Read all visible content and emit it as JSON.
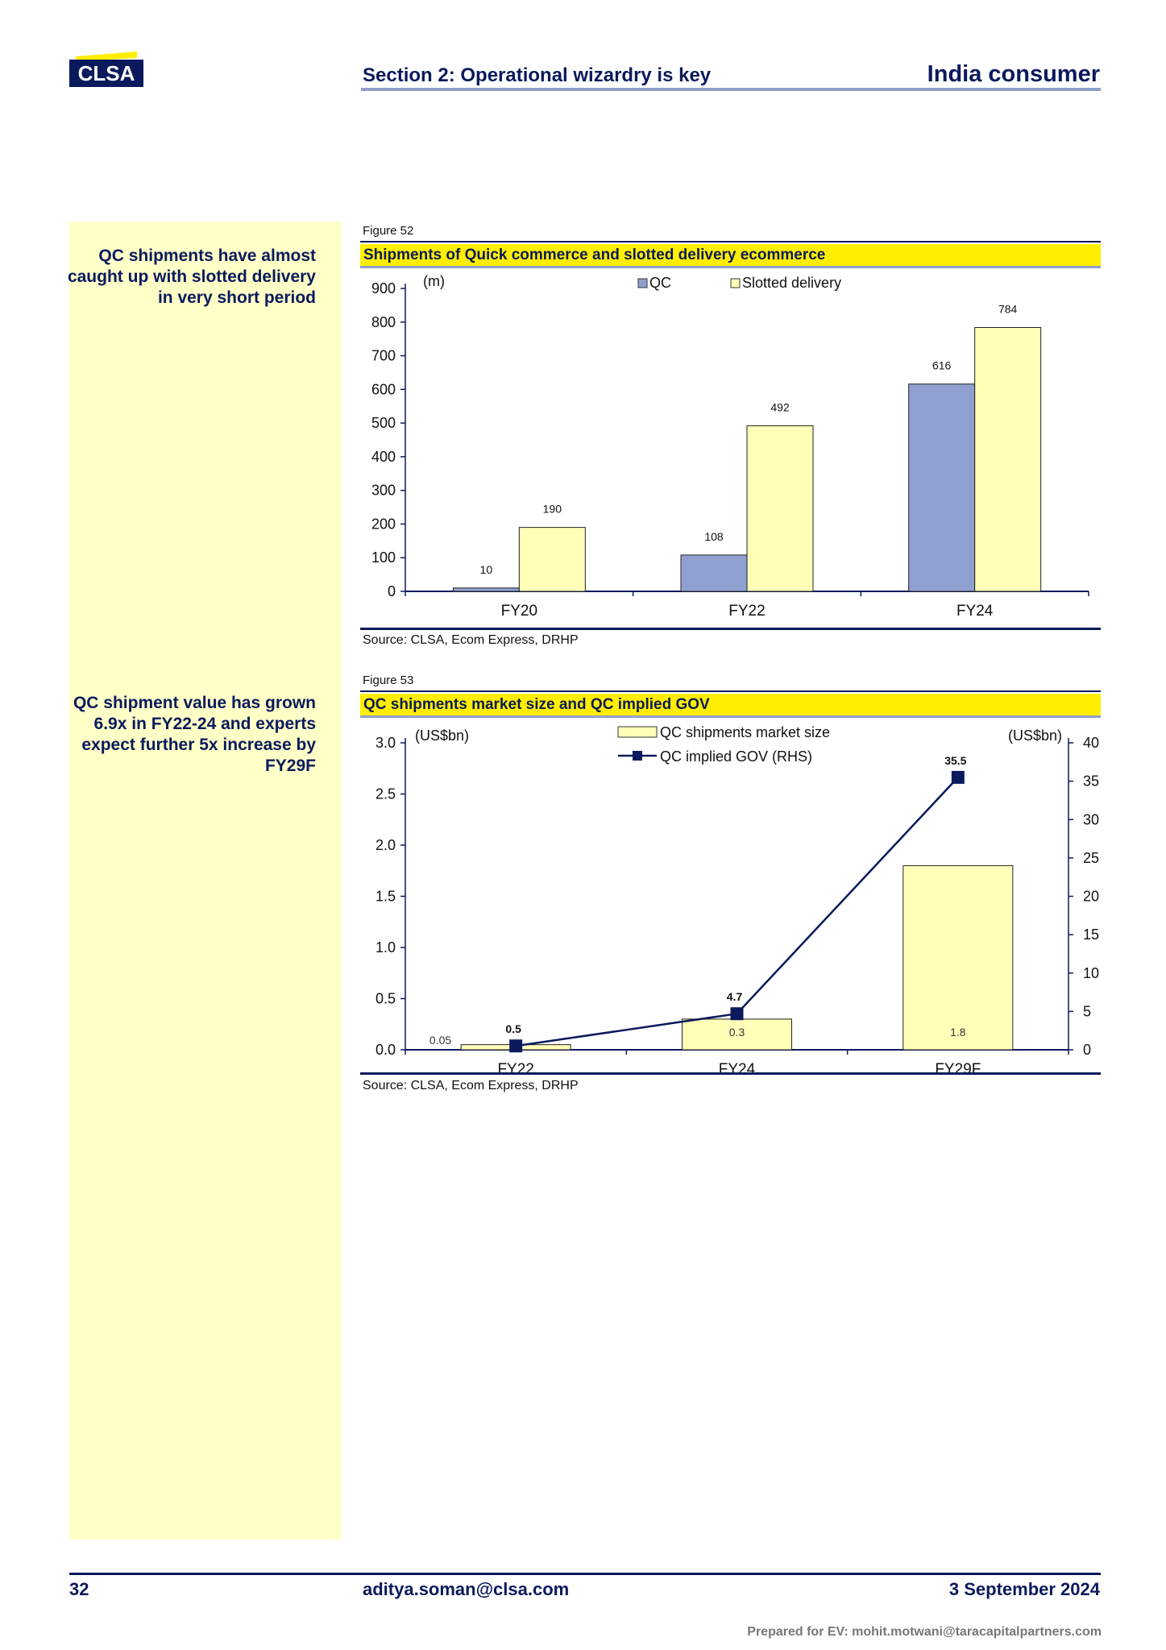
{
  "logo": {
    "text": "CLSA"
  },
  "header": {
    "section_title": "Section 2: Operational wizardry is key",
    "report_title": "India consumer"
  },
  "side_notes": [
    "QC shipments have almost caught up with slotted delivery in very short period",
    "QC shipment value has grown 6.9x in FY22-24 and experts expect further 5x increase by FY29F"
  ],
  "figures": [
    {
      "label": "Figure 52",
      "title": "Shipments of Quick commerce and slotted delivery ecommerce",
      "source": "Source: CLSA, Ecom Express, DRHP"
    },
    {
      "label": "Figure 53",
      "title": "QC shipments market size and QC implied GOV",
      "source": "Source: CLSA, Ecom Express, DRHP"
    }
  ],
  "chart_data": [
    {
      "type": "bar",
      "title": "Shipments of Quick commerce and slotted delivery ecommerce",
      "ylabel": "(m)",
      "categories": [
        "FY20",
        "FY22",
        "FY24"
      ],
      "series": [
        {
          "name": "QC",
          "values": [
            10,
            108,
            616
          ],
          "color": "#8fa0d0"
        },
        {
          "name": "Slotted delivery",
          "values": [
            190,
            492,
            784
          ],
          "color": "#ffffb8"
        }
      ],
      "ylim": [
        0,
        900
      ],
      "yticks": [
        "0",
        "100",
        "200",
        "300",
        "400",
        "500",
        "600",
        "700",
        "800",
        "900"
      ],
      "legend": "top-center",
      "grid": false
    },
    {
      "type": "bar+line",
      "title": "QC shipments market size and QC implied GOV",
      "ylabel_left": "(US$bn)",
      "ylabel_right": "(US$bn)",
      "categories": [
        "FY22",
        "FY24",
        "FY29F"
      ],
      "series": [
        {
          "name": "QC shipments market size",
          "type": "bar",
          "axis": "left",
          "values": [
            0.05,
            0.3,
            1.8
          ],
          "labels": [
            "0.05",
            "0.3",
            "1.8"
          ],
          "color": "#ffffb8"
        },
        {
          "name": "QC implied GOV (RHS)",
          "type": "line",
          "axis": "right",
          "values": [
            0.5,
            4.7,
            35.5
          ],
          "labels": [
            "0.5",
            "4.7",
            "35.5"
          ],
          "color": "#0b1a5c"
        }
      ],
      "ylim_left": [
        0,
        3.0
      ],
      "yticks_left": [
        "0.0",
        "0.5",
        "1.0",
        "1.5",
        "2.0",
        "2.5",
        "3.0"
      ],
      "ylim_right": [
        0,
        40
      ],
      "yticks_right": [
        "0",
        "5",
        "10",
        "15",
        "20",
        "25",
        "30",
        "35",
        "40"
      ],
      "legend": "top-center",
      "grid": false
    }
  ],
  "footer": {
    "page_number": "32",
    "email": "aditya.soman@clsa.com",
    "date": "3 September 2024",
    "prepared_for": "Prepared for EV: mohit.motwani@taracapitalpartners.com"
  }
}
